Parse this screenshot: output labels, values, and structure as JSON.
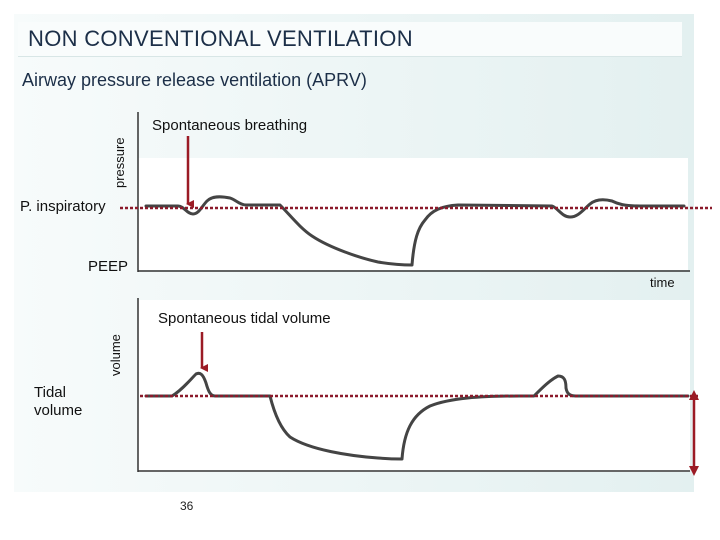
{
  "slide": {
    "title": "NON CONVENTIONAL VENTILATION",
    "subtitle": "Airway pressure release ventilation (APRV)",
    "page_number": "36"
  },
  "pressure_graph": {
    "axis_label": "pressure",
    "annotation": "Spontaneous breathing",
    "p_inspiratory_label": "P. inspiratory",
    "peep_label": "PEEP",
    "time_label": "time"
  },
  "volume_graph": {
    "axis_label": "volume",
    "annotation": "Spontaneous tidal volume",
    "tidal_volume_label": "Tidal\nvolume"
  },
  "colors": {
    "dotted_line": "#8b1a2b",
    "arrow": "#9b1b25",
    "waveform": "#444444",
    "text": "#1c2f48"
  }
}
